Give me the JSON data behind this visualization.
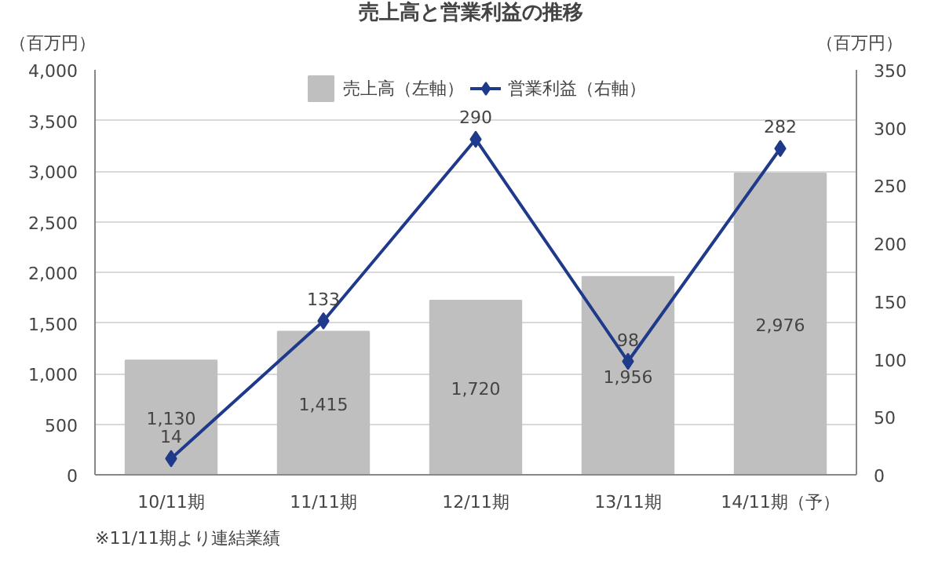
{
  "chart_data": {
    "type": "bar",
    "title": "売上高と営業利益の推移",
    "ylabel": "（百万円）",
    "y2label": "（百万円）",
    "categories": [
      "10/11期",
      "11/11期",
      "12/11期",
      "13/11期",
      "14/11期（予）"
    ],
    "series": [
      {
        "name": "売上高（左軸）",
        "type": "bar",
        "color": "#bfbfbf",
        "values": [
          1130,
          1415,
          1720,
          1956,
          2976
        ],
        "value_labels": [
          "1,130",
          "1,415",
          "1,720",
          "1,956",
          "2,976"
        ]
      },
      {
        "name": "営業利益（右軸）",
        "type": "line",
        "axis": "y2",
        "color": "#1f3a8a",
        "marker": "diamond",
        "values": [
          14,
          133,
          290,
          98,
          282
        ],
        "value_labels": [
          "14",
          "133",
          "290",
          "98",
          "282"
        ]
      }
    ],
    "ylim": [
      0,
      4000
    ],
    "yticks": [
      0,
      500,
      {
        "value": 1000,
        "label": "1,000"
      },
      {
        "value": 1500,
        "label": "1,500"
      },
      {
        "value": 2000,
        "label": "2,000"
      },
      {
        "value": 2500,
        "label": "2,500"
      },
      {
        "value": 3000,
        "label": "3,000"
      },
      {
        "value": 3500,
        "label": "3,500"
      },
      {
        "value": 4000,
        "label": "4,000"
      }
    ],
    "y2lim": [
      0,
      350
    ],
    "y2ticks": [
      0,
      50,
      100,
      150,
      200,
      250,
      300,
      350
    ],
    "grid": "y",
    "legend": "top",
    "annotations": [
      "※11/11期より連結業績"
    ]
  }
}
